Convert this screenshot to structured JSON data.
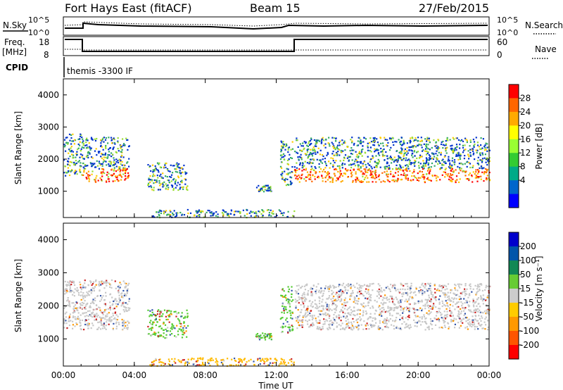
{
  "header": {
    "station": "Fort Hays East (fitACF)",
    "beam": "Beam 15",
    "date": "27/Feb/2015"
  },
  "status_panel": {
    "nsky_label": "N.Sky",
    "nsearch_label": "N.Search",
    "noise_ticks": [
      "10^5",
      "10^0"
    ],
    "freq_label_1": "Freq.",
    "freq_label_2": "[MHz]",
    "freq_ticks": [
      "18",
      "8"
    ],
    "nave_label": "Nave",
    "nave_ticks": [
      "60",
      "0"
    ],
    "cpid_label": "CPID",
    "cpid_text": "themis -3300 IF"
  },
  "x_axis": {
    "label": "Time UT",
    "ticks": [
      "00:00",
      "04:00",
      "08:00",
      "12:00",
      "16:00",
      "20:00",
      "00:00"
    ]
  },
  "chart_data": [
    {
      "type": "heatmap",
      "title": "",
      "parameter": "Power",
      "ylabel": "Slant Range [km]",
      "xlabel": "",
      "x_range_hours": [
        0,
        24
      ],
      "ylim": [
        180,
        4500
      ],
      "y_ticks": [
        1000,
        2000,
        3000,
        4000
      ],
      "colorbar": {
        "label": "Power [dB]",
        "ticks": [
          "28",
          "24",
          "20",
          "16",
          "12",
          "8",
          "4"
        ],
        "colors": [
          "#ff0000",
          "#ff6600",
          "#ffaa00",
          "#ffff00",
          "#99ff33",
          "#33cc33",
          "#00aa88",
          "#0066cc",
          "#0000ff"
        ]
      },
      "echo_regions": [
        {
          "t": [
            0.0,
            1.0
          ],
          "range_km": [
            1500,
            2800
          ],
          "dominant_level": "blue-green"
        },
        {
          "t": [
            1.0,
            3.7
          ],
          "range_km": [
            1300,
            2700
          ],
          "dominant_level": "orange band near 1500 km"
        },
        {
          "t": [
            4.7,
            7.0
          ],
          "range_km": [
            1050,
            1900
          ],
          "dominant_level": "green-yellow"
        },
        {
          "t": [
            10.8,
            11.7
          ],
          "range_km": [
            1000,
            1200
          ],
          "dominant_level": "blue"
        },
        {
          "t": [
            12.2,
            12.9
          ],
          "range_km": [
            1200,
            2600
          ],
          "dominant_level": "blue-green"
        },
        {
          "t": [
            13.0,
            24.0
          ],
          "range_km": [
            1300,
            2700
          ],
          "dominant_level": "red-orange band near 1450-1550 km"
        },
        {
          "t": [
            4.8,
            13.0
          ],
          "range_km": [
            200,
            450
          ],
          "dominant_level": "blue ground scatter near range floor"
        }
      ]
    },
    {
      "type": "heatmap",
      "title": "",
      "parameter": "Velocity",
      "ylabel": "Slant Range [km]",
      "xlabel": "Time UT",
      "x_range_hours": [
        0,
        24
      ],
      "ylim": [
        180,
        4500
      ],
      "y_ticks": [
        1000,
        2000,
        3000,
        4000
      ],
      "colorbar": {
        "label": "Velocity [m s⁻¹]",
        "ticks": [
          "200",
          "100",
          "50",
          "15",
          "-15",
          "-50",
          "-100",
          "-200"
        ],
        "colors": [
          "#0000cc",
          "#0055aa",
          "#118855",
          "#66cc33",
          "#cccccc",
          "#ffcc00",
          "#ff9900",
          "#ff5500",
          "#ff0000"
        ]
      },
      "echo_regions": [
        {
          "t": [
            0.0,
            3.7
          ],
          "range_km": [
            1300,
            2800
          ],
          "dominant_level": "grey (-15 to 15)"
        },
        {
          "t": [
            4.7,
            7.0
          ],
          "range_km": [
            1050,
            1900
          ],
          "dominant_level": "green (15 to 50) over grey"
        },
        {
          "t": [
            10.8,
            11.7
          ],
          "range_km": [
            1000,
            1200
          ],
          "dominant_level": "green"
        },
        {
          "t": [
            12.2,
            12.9
          ],
          "range_km": [
            1200,
            2600
          ],
          "dominant_level": "green"
        },
        {
          "t": [
            13.0,
            24.0
          ],
          "range_km": [
            1300,
            2700
          ],
          "dominant_level": "grey (-15 to 15)"
        },
        {
          "t": [
            4.8,
            13.0
          ],
          "range_km": [
            200,
            450
          ],
          "dominant_level": "yellow-orange near range floor"
        }
      ]
    }
  ]
}
